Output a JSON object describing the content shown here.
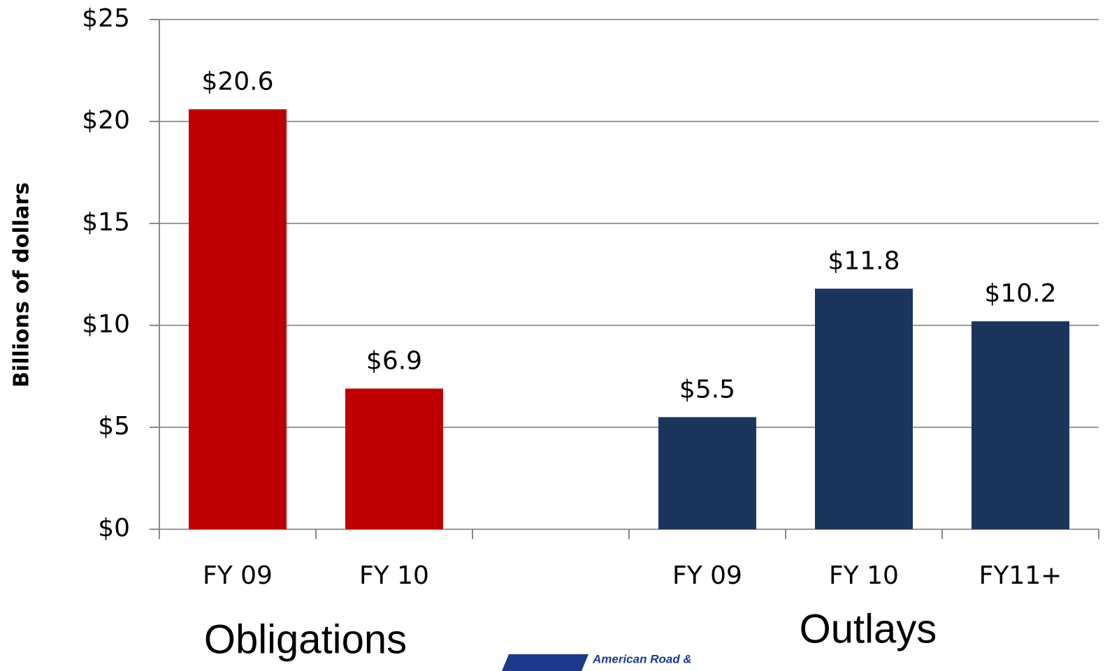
{
  "chart_data": {
    "type": "bar",
    "y_label": "Billions of dollars",
    "categories": [
      "FY 09",
      "FY 10",
      null,
      "FY 09",
      "FY 10",
      "FY11+"
    ],
    "values": [
      20.6,
      6.9,
      null,
      5.5,
      11.8,
      10.2
    ],
    "value_labels": [
      "$20.6",
      "$6.9",
      null,
      "$5.5",
      "$11.8",
      "$10.2"
    ],
    "colors": [
      "#c00000",
      "#c00000",
      null,
      "#1b365d",
      "#1b365d",
      "#1b365d"
    ],
    "ylim": [
      0,
      25
    ],
    "yticks": [
      {
        "value": 0,
        "label": "$0"
      },
      {
        "value": 5,
        "label": "$5"
      },
      {
        "value": 10,
        "label": "$10"
      },
      {
        "value": 15,
        "label": "$15"
      },
      {
        "value": 20,
        "label": "$20"
      },
      {
        "value": 25,
        "label": "$25"
      }
    ],
    "grid": true,
    "annotations": [
      "Obligations",
      "Outlays"
    ],
    "logo_text": "American Road &"
  }
}
